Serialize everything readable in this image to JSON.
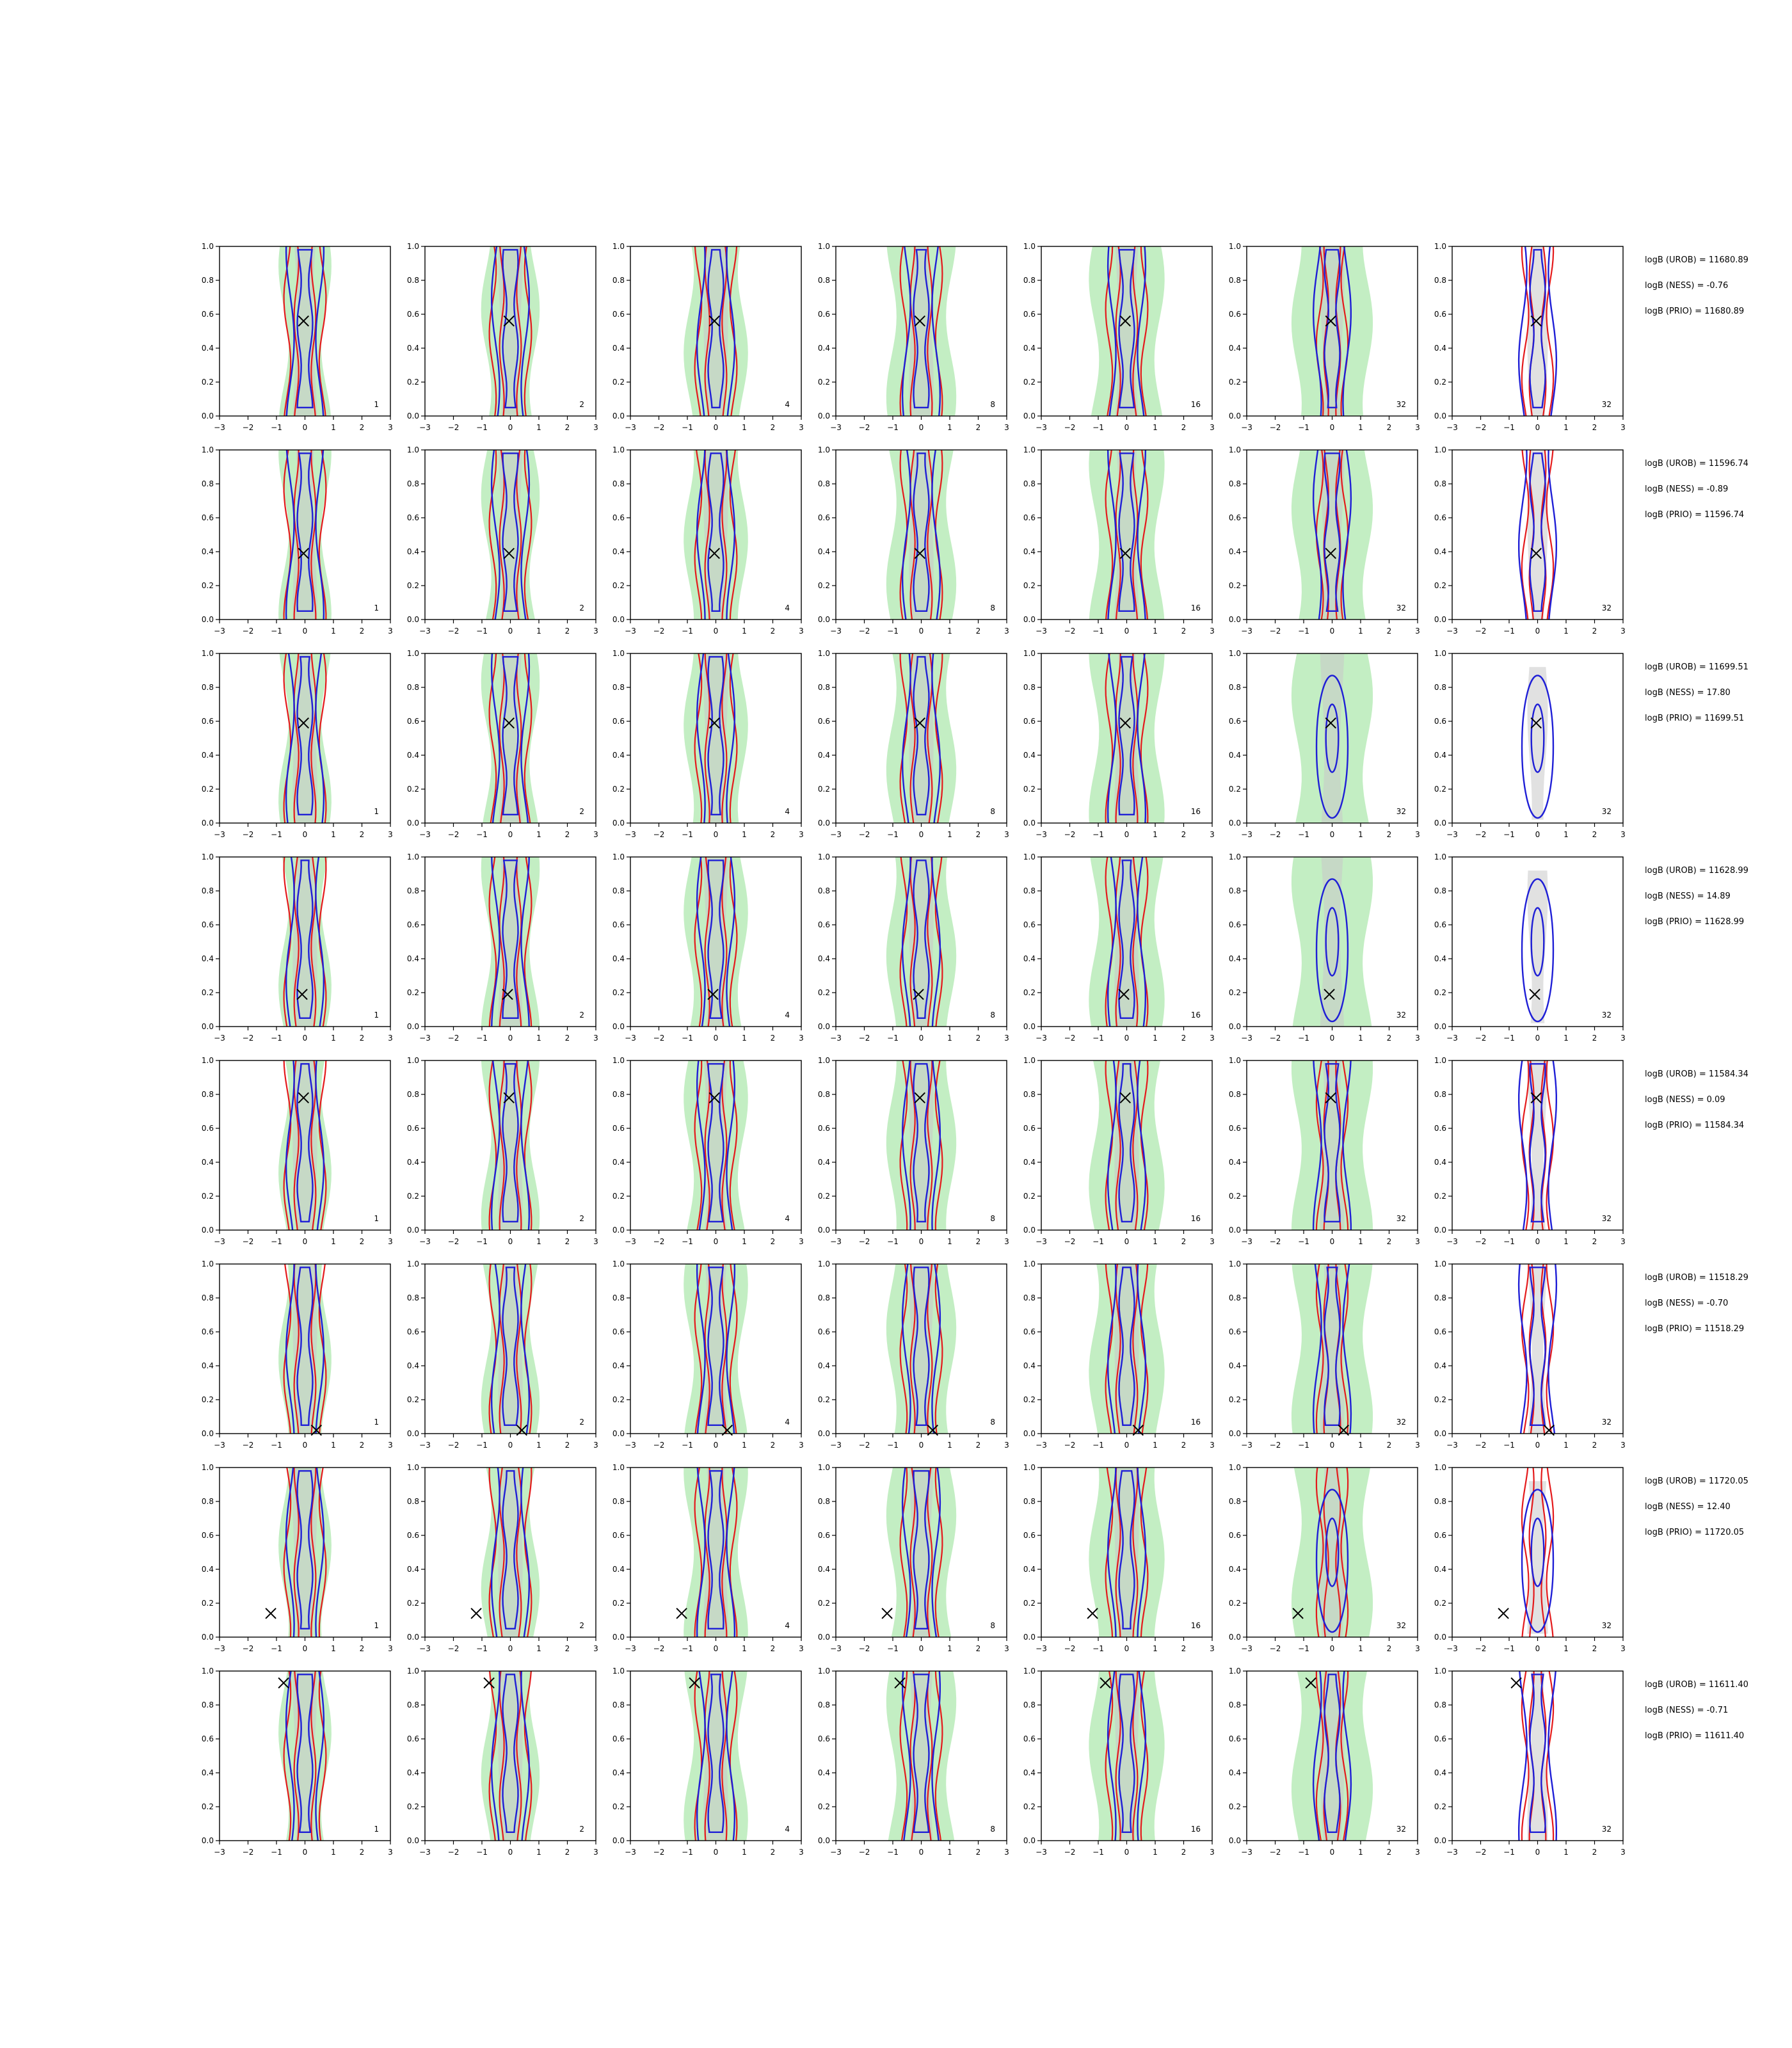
{
  "chart_data": {
    "type": "contour",
    "layout": {
      "rows": 8,
      "cols": 7
    },
    "xlim": [
      -3,
      3
    ],
    "ylim": [
      0,
      1
    ],
    "xticks": [
      -3,
      -2,
      -1,
      0,
      1,
      2,
      3
    ],
    "yticks": [
      0.0,
      0.2,
      0.4,
      0.6,
      0.8,
      1.0
    ],
    "xtick_labels": [
      "−3",
      "−2",
      "−1",
      "0",
      "1",
      "2",
      "3"
    ],
    "ytick_labels": [
      "0.0",
      "0.2",
      "0.4",
      "0.6",
      "0.8",
      "1.0"
    ],
    "column_labels": [
      "1",
      "2",
      "4",
      "8",
      "16",
      "32",
      "32"
    ],
    "series_colors": {
      "red": "#e41a1c",
      "blue": "#1f1fd6",
      "green_fill": "#b8ebb8",
      "grey_fill": "#c8c8c8",
      "marker": "#000000"
    },
    "rows": [
      {
        "truth": {
          "x": -0.05,
          "y": 0.56
        },
        "uncertain": false,
        "annotations": [
          "logB (UROB) = 11680.89",
          "logB (NESS) = -0.76",
          "logB (PRIO) = 11680.89"
        ]
      },
      {
        "truth": {
          "x": -0.05,
          "y": 0.39
        },
        "uncertain": false,
        "annotations": [
          "logB (UROB) = 11596.74",
          "logB (NESS) = -0.89",
          "logB (PRIO) = 11596.74"
        ]
      },
      {
        "truth": {
          "x": -0.05,
          "y": 0.59
        },
        "uncertain": true,
        "annotations": [
          "logB (UROB) = 11699.51",
          "logB (NESS) = 17.80",
          "logB (PRIO) = 11699.51"
        ]
      },
      {
        "truth": {
          "x": -0.1,
          "y": 0.19
        },
        "uncertain": true,
        "annotations": [
          "logB (UROB) = 11628.99",
          "logB (NESS) = 14.89",
          "logB (PRIO) = 11628.99"
        ]
      },
      {
        "truth": {
          "x": -0.05,
          "y": 0.78
        },
        "uncertain": false,
        "annotations": [
          "logB (UROB) = 11584.34",
          "logB (NESS) = 0.09",
          "logB (PRIO) = 11584.34"
        ]
      },
      {
        "truth": {
          "x": 0.4,
          "y": 0.02
        },
        "uncertain": false,
        "annotations": [
          "logB (UROB) = 11518.29",
          "logB (NESS) = -0.70",
          "logB (PRIO) = 11518.29"
        ]
      },
      {
        "truth": {
          "x": -1.2,
          "y": 0.14
        },
        "uncertain": true,
        "annotations": [
          "logB (UROB) = 11720.05",
          "logB (NESS) = 12.40",
          "logB (PRIO) = 11720.05"
        ]
      },
      {
        "truth": {
          "x": -0.75,
          "y": 0.93
        },
        "uncertain": false,
        "annotations": [
          "logB (UROB) = 11611.40",
          "logB (NESS) = -0.71",
          "logB (PRIO) = 11611.40"
        ]
      }
    ]
  }
}
